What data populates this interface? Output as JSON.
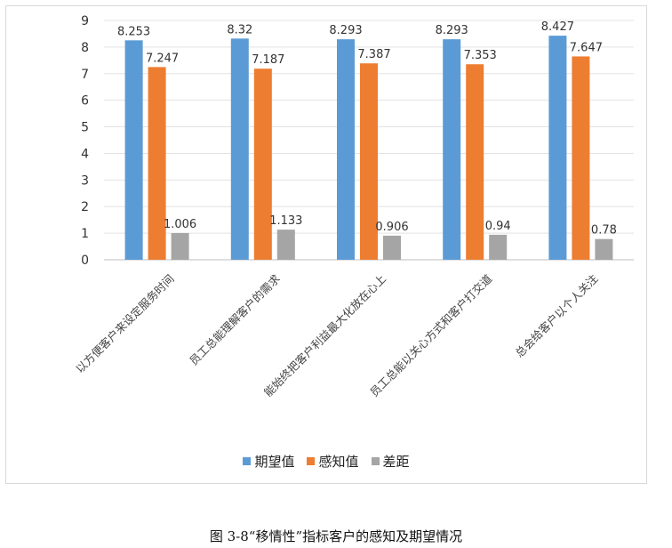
{
  "chart_data": {
    "type": "bar",
    "categories": [
      "以方便客户来设定服务时间",
      "员工总能理解客户的需求",
      "能始终把客户利益最大化放在心上",
      "员工总能以关心方式和客户打交道",
      "总会给客户以个人关注"
    ],
    "series": [
      {
        "name": "期望值",
        "values": [
          8.253,
          8.32,
          8.293,
          8.293,
          8.427
        ],
        "color": "#5b9bd5"
      },
      {
        "name": "感知值",
        "values": [
          7.247,
          7.187,
          7.387,
          7.353,
          7.647
        ],
        "color": "#ed7d31"
      },
      {
        "name": "差距",
        "values": [
          1.006,
          1.133,
          0.906,
          0.94,
          0.78
        ],
        "color": "#a5a5a5"
      }
    ],
    "value_labels": [
      [
        "8.253",
        "8.32",
        "8.293",
        "8.293",
        "8.427"
      ],
      [
        "7.247",
        "7.187",
        "7.387",
        "7.353",
        "7.647"
      ],
      [
        "1.006",
        "1.133",
        "0.906",
        "0.94",
        "0.78"
      ]
    ],
    "ylim": [
      0,
      9
    ],
    "yticks": [
      "0",
      "1",
      "2",
      "3",
      "4",
      "5",
      "6",
      "7",
      "8",
      "9"
    ],
    "grid": true,
    "legend_position": "bottom"
  },
  "caption": "图 3-8“移情性”指标客户的感知及期望情况"
}
